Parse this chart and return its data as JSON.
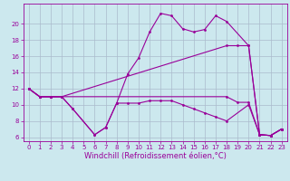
{
  "color": "#990099",
  "bg_color": "#cce8ee",
  "grid_color": "#aabbcc",
  "xlabel": "Windchill (Refroidissement éolien,°C)",
  "xlim": [
    -0.5,
    23.5
  ],
  "ylim": [
    5.5,
    22.5
  ],
  "yticks": [
    6,
    8,
    10,
    12,
    14,
    16,
    18,
    20
  ],
  "xticks": [
    0,
    1,
    2,
    3,
    4,
    5,
    6,
    7,
    8,
    9,
    10,
    11,
    12,
    13,
    14,
    15,
    16,
    17,
    18,
    19,
    20,
    21,
    22,
    23
  ],
  "label_fontsize": 6,
  "tick_fontsize": 5,
  "line_series": [
    {
      "x": [
        0,
        1,
        2,
        3,
        4,
        6,
        7,
        8,
        9,
        10,
        11,
        12,
        13,
        14,
        15,
        16,
        17,
        18,
        20,
        21,
        22,
        23
      ],
      "y": [
        12,
        11,
        11,
        11,
        9.5,
        6.3,
        7.2,
        10.2,
        13.8,
        15.8,
        19.0,
        21.3,
        21.0,
        19.4,
        19.0,
        19.3,
        21.0,
        20.3,
        17.3,
        6.3,
        6.2,
        7.0
      ]
    },
    {
      "x": [
        0,
        1,
        2,
        3,
        4,
        6,
        7,
        8,
        9,
        10,
        11,
        12,
        13,
        14,
        15,
        16,
        17,
        18,
        20,
        21,
        22,
        23
      ],
      "y": [
        12,
        11,
        11,
        11,
        9.5,
        6.3,
        7.2,
        10.2,
        10.2,
        10.2,
        10.5,
        10.5,
        10.5,
        10.0,
        9.5,
        9.0,
        8.5,
        8.0,
        10.0,
        6.3,
        6.2,
        7.0
      ]
    },
    {
      "x": [
        0,
        1,
        2,
        3,
        18,
        19,
        20,
        21,
        22,
        23
      ],
      "y": [
        12,
        11,
        11,
        11,
        17.3,
        17.3,
        17.3,
        6.3,
        6.2,
        7.0
      ]
    },
    {
      "x": [
        0,
        1,
        2,
        3,
        18,
        19,
        20,
        21,
        22,
        23
      ],
      "y": [
        12,
        11,
        11,
        11,
        11.0,
        10.3,
        10.3,
        6.3,
        6.2,
        7.0
      ]
    }
  ]
}
